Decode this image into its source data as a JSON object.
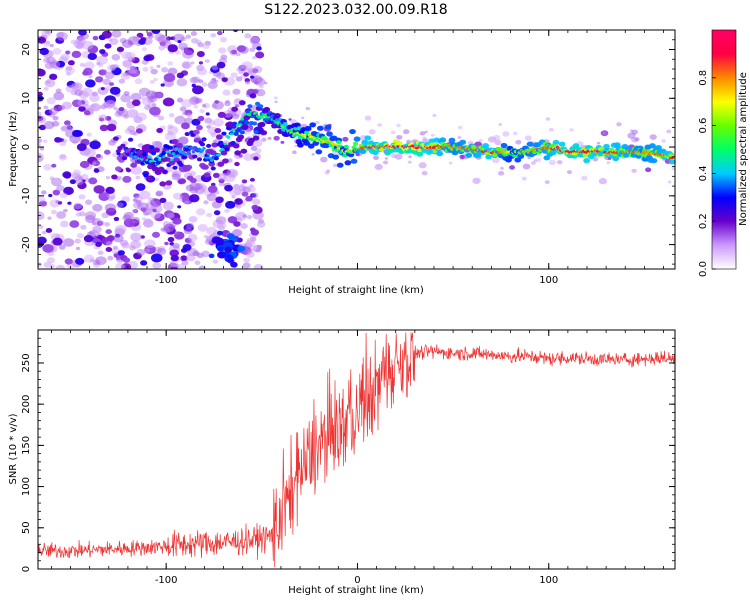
{
  "figure": {
    "title": "S122.2023.032.00.09.R18"
  },
  "chart_data": [
    {
      "type": "heatmap",
      "xlabel": "Height of straight line (km)",
      "ylabel": "Frequency (Hz)",
      "xlim": [
        -167,
        166
      ],
      "ylim": [
        -25,
        24
      ],
      "x_ticks": [
        -100,
        0,
        100
      ],
      "x_tick_labels": [
        "-100",
        "",
        "100"
      ],
      "y_ticks": [
        -20,
        -10,
        0,
        10,
        20
      ],
      "y_tick_labels": [
        "-20",
        "-10",
        "0",
        "10",
        "20"
      ],
      "grid": false,
      "colorbar": {
        "label": "Normalized spectral amplitude",
        "range": [
          0,
          1
        ],
        "ticks": [
          0.0,
          0.2,
          0.4,
          0.6,
          0.8
        ],
        "tick_labels": [
          "0.0",
          "0.2",
          "0.4",
          "0.6",
          "0.8"
        ],
        "colormap": [
          "#ffffff",
          "#cc99ff",
          "#6600cc",
          "#0000ff",
          "#00ccff",
          "#00ff66",
          "#66ff00",
          "#ffff00",
          "#ff8800",
          "#ff0044",
          "#ff0066"
        ]
      },
      "ridge": {
        "x": [
          -125,
          -115,
          -105,
          -95,
          -85,
          -75,
          -65,
          -55,
          -45,
          -35,
          -25,
          -15,
          -5,
          5,
          15,
          30,
          50,
          70,
          80,
          90,
          100,
          110,
          130,
          150,
          165
        ],
        "frequency": [
          -1,
          -2,
          -3,
          -1,
          0,
          -2,
          3,
          7,
          6,
          3,
          2,
          1,
          -1,
          0,
          0,
          0,
          0,
          -1,
          -1,
          -1,
          0,
          -1,
          -1,
          -1,
          -2
        ],
        "amplitude": [
          0.3,
          0.4,
          0.45,
          0.4,
          0.35,
          0.4,
          0.45,
          0.5,
          0.5,
          0.6,
          0.7,
          0.75,
          0.7,
          0.9,
          0.95,
          1.0,
          0.8,
          0.9,
          0.7,
          0.8,
          0.85,
          0.95,
          0.9,
          0.8,
          0.9
        ]
      }
    },
    {
      "type": "line",
      "xlabel": "Height of straight line (km)",
      "ylabel": "SNR (10 * v/v)",
      "xlim": [
        -167,
        166
      ],
      "ylim": [
        0,
        290
      ],
      "x_ticks": [
        -100,
        0,
        100
      ],
      "x_tick_labels": [
        "-100",
        "0",
        "100"
      ],
      "y_ticks": [
        0,
        50,
        100,
        150,
        200,
        250
      ],
      "y_tick_labels": [
        "0",
        "50",
        "100",
        "150",
        "200",
        "250"
      ],
      "grid": false,
      "series": [
        {
          "color": "#ee3333",
          "x": [
            -167,
            -150,
            -130,
            -110,
            -90,
            -70,
            -55,
            -45,
            -40,
            -35,
            -30,
            -25,
            -20,
            -15,
            -10,
            -5,
            0,
            5,
            10,
            15,
            20,
            25,
            30,
            40,
            50,
            60,
            70,
            80,
            90,
            100,
            110,
            120,
            130,
            140,
            150,
            160,
            166
          ],
          "values": [
            22,
            22,
            24,
            26,
            30,
            32,
            35,
            40,
            60,
            90,
            115,
            135,
            150,
            165,
            170,
            180,
            185,
            205,
            220,
            238,
            250,
            256,
            262,
            264,
            262,
            262,
            260,
            258,
            258,
            255,
            256,
            255,
            254,
            254,
            255,
            256,
            255
          ]
        }
      ]
    }
  ]
}
